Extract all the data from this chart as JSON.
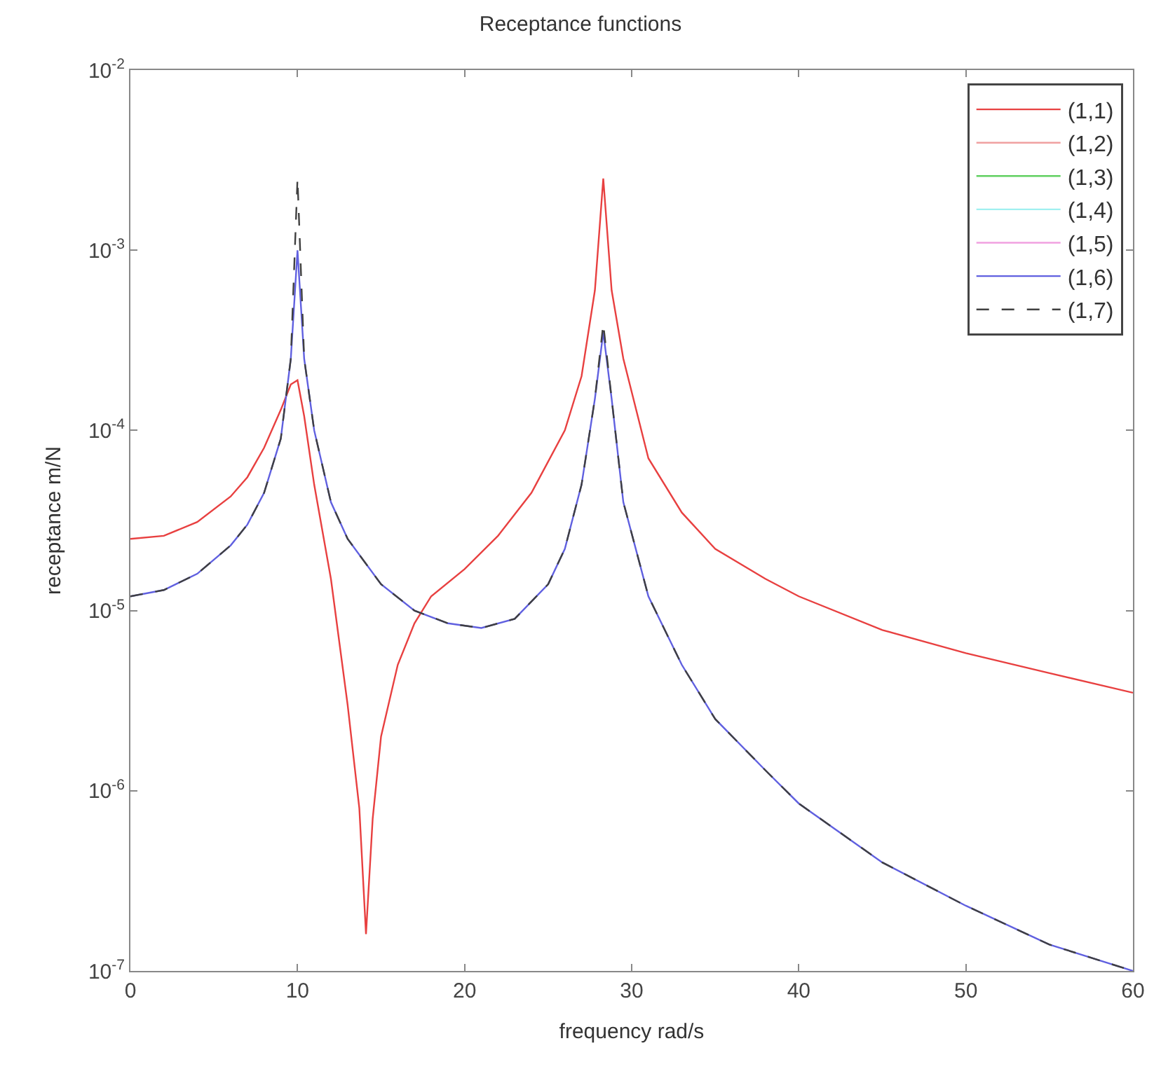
{
  "chart_data": {
    "type": "line",
    "title": "Receptance functions",
    "xlabel": "frequency rad/s",
    "ylabel": "receptance m/N",
    "xlim": [
      0,
      60
    ],
    "xticks": [
      0,
      10,
      20,
      30,
      40,
      50,
      60
    ],
    "ylim": [
      1e-07,
      0.01
    ],
    "yticks": [
      {
        "value": 1e-07,
        "label": "10$^{-7}$"
      },
      {
        "value": 1e-06,
        "label": "10$^{-6}$"
      },
      {
        "value": 1e-05,
        "label": "10$^{-5}$"
      },
      {
        "value": 0.0001,
        "label": "10$^{-4}$"
      },
      {
        "value": 0.001,
        "label": "10$^{-3}$"
      },
      {
        "value": 0.01,
        "label": "10$^{-2}$"
      }
    ],
    "log": "y",
    "legend": "top right",
    "marker": "none",
    "series": [
      {
        "name": "(1,1)",
        "color": "#e84040",
        "line_style": "solid",
        "x": [
          0,
          2,
          4,
          6,
          7,
          8,
          9,
          9.6,
          10,
          10.4,
          11,
          12,
          13,
          13.7,
          14.1,
          14.5,
          15,
          16,
          17,
          18,
          20,
          22,
          24,
          26,
          27,
          27.8,
          28.3,
          28.8,
          29.5,
          31,
          33,
          35,
          38,
          40,
          45,
          50,
          55,
          60
        ],
        "values": [
          2.5e-05,
          2.6e-05,
          3.1e-05,
          4.3e-05,
          5.5e-05,
          8e-05,
          0.00013,
          0.00018,
          0.00019,
          0.00012,
          5e-05,
          1.5e-05,
          3e-06,
          8e-07,
          1.6e-07,
          7e-07,
          2e-06,
          5e-06,
          8.5e-06,
          1.2e-05,
          1.7e-05,
          2.6e-05,
          4.5e-05,
          0.0001,
          0.0002,
          0.0006,
          0.0025,
          0.0006,
          0.00025,
          7e-05,
          3.5e-05,
          2.2e-05,
          1.5e-05,
          1.2e-05,
          7.8e-06,
          5.8e-06,
          4.5e-06,
          3.5e-06
        ]
      },
      {
        "name": "(1,2)",
        "color": "#f0a0a0",
        "line_style": "solid"
      },
      {
        "name": "(1,3)",
        "color": "#60d060",
        "line_style": "solid"
      },
      {
        "name": "(1,4)",
        "color": "#a0f0f0",
        "line_style": "solid"
      },
      {
        "name": "(1,5)",
        "color": "#f0a0e0",
        "line_style": "solid"
      },
      {
        "name": "(1,6)",
        "color": "#6060e0",
        "line_style": "solid",
        "x": [
          0,
          2,
          4,
          6,
          7,
          8,
          9,
          9.6,
          10,
          10.4,
          11,
          12,
          13,
          15,
          17,
          19,
          21,
          23,
          25,
          26,
          27,
          27.8,
          28.3,
          28.8,
          29.5,
          31,
          33,
          35,
          38,
          40,
          45,
          50,
          55,
          60
        ],
        "values": [
          1.2e-05,
          1.3e-05,
          1.6e-05,
          2.3e-05,
          3e-05,
          4.5e-05,
          9e-05,
          0.00025,
          0.001,
          0.00025,
          0.0001,
          4e-05,
          2.5e-05,
          1.4e-05,
          1e-05,
          8.5e-06,
          8e-06,
          9e-06,
          1.4e-05,
          2.2e-05,
          5e-05,
          0.00015,
          0.00035,
          0.00015,
          4e-05,
          1.2e-05,
          5e-06,
          2.5e-06,
          1.3e-06,
          8.5e-07,
          4e-07,
          2.3e-07,
          1.4e-07,
          1e-07
        ]
      },
      {
        "name": "(1,7)",
        "color": "#404040",
        "line_style": "dashed",
        "x": [
          0,
          2,
          4,
          6,
          7,
          8,
          9,
          9.6,
          10,
          10.4,
          11,
          12,
          13,
          15,
          17,
          19,
          21,
          23,
          25,
          26,
          27,
          27.8,
          28.3,
          28.8,
          29.5,
          31,
          33,
          35,
          38,
          40,
          45,
          50,
          55,
          60
        ],
        "values": [
          1.2e-05,
          1.3e-05,
          1.6e-05,
          2.3e-05,
          3e-05,
          4.5e-05,
          9e-05,
          0.00025,
          0.0025,
          0.00025,
          0.0001,
          4e-05,
          2.5e-05,
          1.4e-05,
          1e-05,
          8.5e-06,
          8e-06,
          9e-06,
          1.4e-05,
          2.2e-05,
          5e-05,
          0.00015,
          0.00039,
          0.00015,
          4e-05,
          1.2e-05,
          5e-06,
          2.5e-06,
          1.3e-06,
          8.5e-07,
          4e-07,
          2.3e-07,
          1.4e-07,
          1e-07
        ]
      }
    ]
  }
}
